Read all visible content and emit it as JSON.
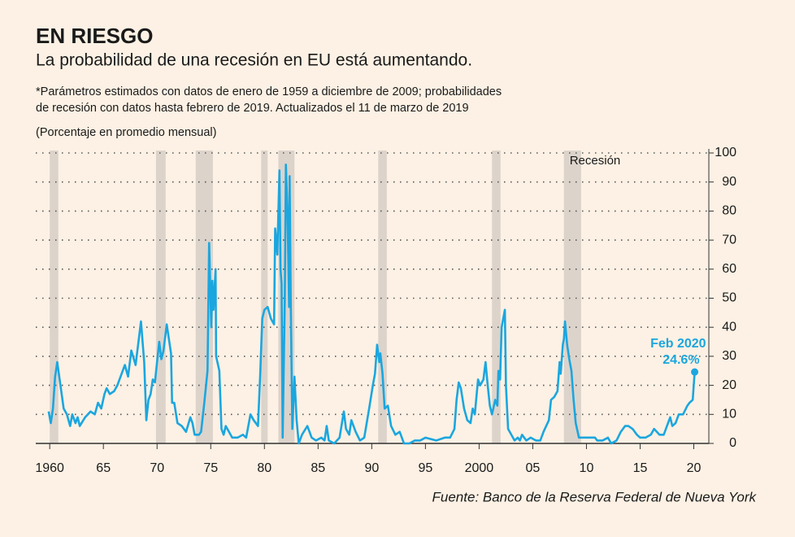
{
  "chart_data": {
    "type": "line",
    "title": "EN RIESGO",
    "subtitle": "La probabilidad de una recesión en EU está aumentando.",
    "notes": [
      "*Parámetros estimados con datos de enero de 1959 a diciembre de 2009; probabilidades",
      "de recesión con datos hasta febrero de 2019. Actualizados el 11 de marzo de 2019"
    ],
    "y_label": "(Porcentaje en promedio mensual)",
    "source": "Fuente: Banco de la Reserva Federal de Nueva York",
    "recession_label": "Recesión",
    "recession_color": "#dcd3cb",
    "recessions": [
      [
        1960.0,
        1960.8
      ],
      [
        1969.9,
        1970.8
      ],
      [
        1973.6,
        1975.2
      ],
      [
        1979.7,
        1980.3
      ],
      [
        1981.3,
        1982.8
      ],
      [
        1990.6,
        1991.4
      ],
      [
        2001.2,
        2002.0
      ],
      [
        2007.9,
        2009.5
      ]
    ],
    "xlim": [
      1958.7,
      2021.4
    ],
    "xticks": [
      1960,
      {
        "value": 1965,
        "label": "65"
      },
      {
        "value": 1970,
        "label": "70"
      },
      {
        "value": 1975,
        "label": "75"
      },
      {
        "value": 1980,
        "label": "80"
      },
      {
        "value": 1985,
        "label": "85"
      },
      {
        "value": 1990,
        "label": "90"
      },
      {
        "value": 1995,
        "label": "95"
      },
      2000,
      {
        "value": 2005,
        "label": "05"
      },
      {
        "value": 2010,
        "label": "10"
      },
      {
        "value": 2015,
        "label": "15"
      },
      {
        "value": 2020,
        "label": "20"
      }
    ],
    "ylim": [
      0,
      100
    ],
    "yticks": [
      0,
      10,
      20,
      30,
      40,
      50,
      60,
      70,
      80,
      90,
      100
    ],
    "grid": true,
    "x": [
      1959.9,
      1960.1,
      1960.3,
      1960.5,
      1960.7,
      1961.0,
      1961.3,
      1961.6,
      1961.9,
      1962.1,
      1962.4,
      1962.6,
      1962.8,
      1963.3,
      1963.8,
      1964.2,
      1964.5,
      1964.8,
      1965.1,
      1965.3,
      1965.6,
      1966.0,
      1966.3,
      1966.7,
      1967.0,
      1967.3,
      1967.6,
      1968.0,
      1968.3,
      1968.5,
      1968.8,
      1969.0,
      1969.2,
      1969.4,
      1969.6,
      1969.8,
      1970.0,
      1970.2,
      1970.4,
      1970.6,
      1970.9,
      1971.1,
      1971.3,
      1971.4,
      1971.6,
      1971.9,
      1972.3,
      1972.7,
      1973.1,
      1973.3,
      1973.5,
      1973.9,
      1974.1,
      1974.4,
      1974.7,
      1974.85,
      1974.95,
      1975.05,
      1975.15,
      1975.25,
      1975.45,
      1975.5,
      1975.8,
      1976.0,
      1976.2,
      1976.4,
      1976.7,
      1977.0,
      1977.5,
      1978.0,
      1978.3,
      1978.7,
      1979.0,
      1979.4,
      1979.6,
      1979.8,
      1980.0,
      1980.3,
      1980.6,
      1980.9,
      1981.0,
      1981.2,
      1981.4,
      1981.5,
      1981.6,
      1981.7,
      1981.9,
      1982.0,
      1982.15,
      1982.3,
      1982.35,
      1982.45,
      1982.6,
      1982.8,
      1983.0,
      1983.2,
      1983.5,
      1984.0,
      1984.4,
      1984.8,
      1985.3,
      1985.6,
      1985.8,
      1986.0,
      1986.5,
      1987.0,
      1987.4,
      1987.6,
      1987.9,
      1988.1,
      1988.5,
      1988.9,
      1989.3,
      1989.8,
      1990.1,
      1990.3,
      1990.5,
      1990.7,
      1990.8,
      1991.0,
      1991.2,
      1991.5,
      1991.8,
      1992.2,
      1992.6,
      1993.0,
      1993.5,
      1994.0,
      1994.5,
      1995.0,
      1996.0,
      1996.8,
      1997.3,
      1997.7,
      1997.9,
      1998.1,
      1998.3,
      1998.6,
      1998.9,
      1999.2,
      1999.4,
      1999.6,
      1999.9,
      2000.1,
      2000.4,
      2000.6,
      2000.8,
      2001.0,
      2001.2,
      2001.5,
      2001.7,
      2001.8,
      2001.95,
      2002.1,
      2002.3,
      2002.4,
      2002.5,
      2002.7,
      2003.0,
      2003.3,
      2003.6,
      2003.8,
      2004.0,
      2004.4,
      2004.8,
      2005.3,
      2005.7,
      2006.0,
      2006.5,
      2006.7,
      2007.0,
      2007.3,
      2007.5,
      2007.6,
      2007.8,
      2007.9,
      2008.0,
      2008.2,
      2008.4,
      2008.6,
      2008.8,
      2009.0,
      2009.3,
      2009.8,
      2010.3,
      2010.8,
      2011.0,
      2011.5,
      2012.0,
      2012.3,
      2012.8,
      2013.2,
      2013.6,
      2013.9,
      2014.3,
      2014.7,
      2015.0,
      2015.5,
      2016.0,
      2016.3,
      2016.8,
      2017.2,
      2017.5,
      2017.8,
      2018.0,
      2018.3,
      2018.6,
      2019.0,
      2019.4,
      2019.6,
      2019.9,
      2020.08
    ],
    "series": [
      {
        "color": "#1ba6df",
        "values": [
          11,
          7,
          12,
          23,
          28,
          20,
          12,
          10,
          6,
          10,
          7,
          9,
          6,
          9,
          11,
          10,
          14,
          12,
          17,
          19,
          17,
          18,
          20,
          24,
          27,
          23,
          32,
          27,
          36,
          42,
          28,
          8,
          15,
          17,
          22,
          21,
          28,
          35,
          29,
          32,
          41,
          36,
          31,
          14,
          14,
          7,
          6,
          4,
          9,
          7,
          3,
          3,
          4,
          14,
          25,
          69,
          55,
          40,
          56,
          46,
          60,
          30,
          25,
          5,
          3,
          6,
          4,
          2,
          2,
          3,
          2,
          10,
          8,
          6,
          23,
          43,
          46,
          47,
          43,
          41,
          74,
          65,
          94,
          60,
          55,
          2,
          50,
          96,
          80,
          47,
          92,
          50,
          5,
          23,
          8,
          0,
          3,
          6,
          2,
          1,
          2,
          1,
          6,
          1,
          0,
          2,
          11,
          5,
          3,
          8,
          4,
          1,
          2,
          13,
          20,
          24,
          34,
          28,
          31,
          24,
          12,
          13,
          6,
          3,
          4,
          0,
          0,
          1,
          1,
          2,
          1,
          2,
          2,
          5,
          15,
          21,
          19,
          12,
          8,
          7,
          12,
          10,
          22,
          20,
          22,
          28,
          20,
          13,
          10,
          15,
          13,
          25,
          22,
          40,
          44,
          46,
          20,
          5,
          3,
          1,
          2,
          1,
          3,
          1,
          2,
          1,
          1,
          4,
          8,
          15,
          16,
          18,
          28,
          24,
          34,
          36,
          42,
          34,
          29,
          25,
          15,
          7,
          2,
          2,
          2,
          2,
          1,
          1,
          2,
          0,
          1,
          4,
          6,
          6,
          5,
          3,
          2,
          2,
          3,
          5,
          3,
          3,
          6,
          9,
          6,
          7,
          10,
          10,
          13,
          14,
          15,
          24.6
        ]
      }
    ],
    "annotation": {
      "x": 2020.08,
      "y": 24.6,
      "label": "Feb 2020",
      "value_label": "24.6%"
    }
  }
}
